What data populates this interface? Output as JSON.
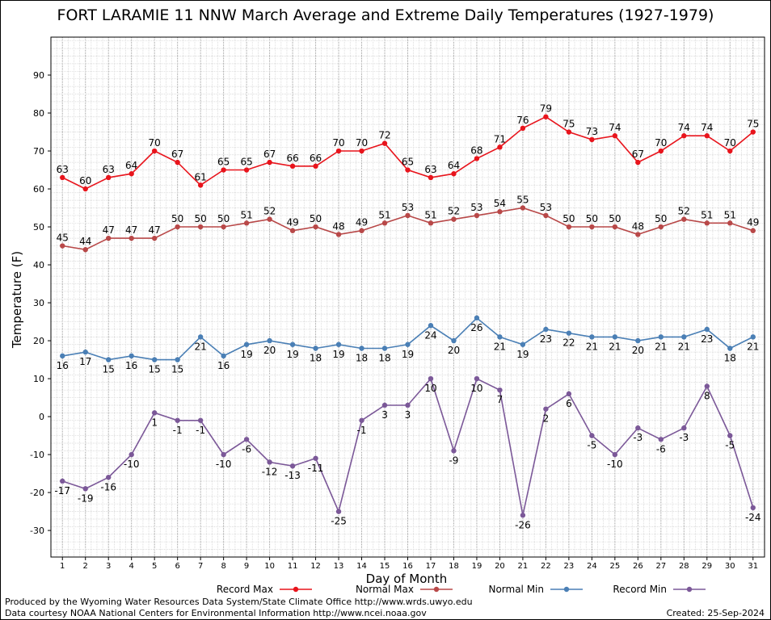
{
  "chart_data": {
    "type": "line",
    "title": "FORT LARAMIE 11 NNW March Average and Extreme Daily Temperatures (1927-1979)",
    "xlabel": "Day of Month",
    "ylabel": "Temperature (F)",
    "x": [
      1,
      2,
      3,
      4,
      5,
      6,
      7,
      8,
      9,
      10,
      11,
      12,
      13,
      14,
      15,
      16,
      17,
      18,
      19,
      20,
      21,
      22,
      23,
      24,
      25,
      26,
      27,
      28,
      29,
      30,
      31
    ],
    "xlim": [
      0.5,
      31.5
    ],
    "ylim": [
      -37,
      100
    ],
    "yticks": [
      -30,
      -20,
      -10,
      0,
      10,
      20,
      30,
      40,
      50,
      60,
      70,
      80,
      90
    ],
    "grid": true,
    "legend_position": "bottom",
    "series": [
      {
        "name": "Record Max",
        "color": "#e8141c",
        "label_position": "above",
        "values": [
          63,
          60,
          63,
          64,
          70,
          67,
          61,
          65,
          65,
          67,
          66,
          66,
          70,
          70,
          72,
          65,
          63,
          64,
          68,
          71,
          76,
          79,
          75,
          73,
          74,
          67,
          70,
          74,
          74,
          70,
          75
        ]
      },
      {
        "name": "Normal Max",
        "color": "#b84848",
        "label_position": "above",
        "values": [
          45,
          44,
          47,
          47,
          47,
          50,
          50,
          50,
          51,
          52,
          49,
          50,
          48,
          49,
          51,
          53,
          51,
          52,
          53,
          54,
          55,
          53,
          50,
          50,
          50,
          48,
          50,
          52,
          51,
          51,
          49
        ]
      },
      {
        "name": "Normal Min",
        "color": "#4a7fb5",
        "label_position": "below",
        "values": [
          16,
          17,
          15,
          16,
          15,
          15,
          21,
          16,
          19,
          20,
          19,
          18,
          19,
          18,
          18,
          19,
          24,
          20,
          26,
          21,
          19,
          23,
          22,
          21,
          21,
          20,
          21,
          21,
          23,
          18,
          21
        ]
      },
      {
        "name": "Record Min",
        "color": "#7b5898",
        "label_position": "below",
        "values": [
          -17,
          -19,
          -16,
          -10,
          1,
          -1,
          -1,
          -10,
          -6,
          -12,
          -13,
          -11,
          -25,
          -1,
          3,
          3,
          10,
          -9,
          10,
          7,
          -26,
          2,
          6,
          -5,
          -10,
          -3,
          -6,
          -3,
          8,
          -5,
          -24
        ]
      }
    ]
  },
  "footer": {
    "credit_line_1": "Produced by the Wyoming Water Resources Data System/State Climate Office http://www.wrds.uwyo.edu",
    "credit_line_2": "Data courtesy NOAA National Centers for Environmental Information http://www.ncei.noaa.gov",
    "created": "Created:  25-Sep-2024"
  }
}
